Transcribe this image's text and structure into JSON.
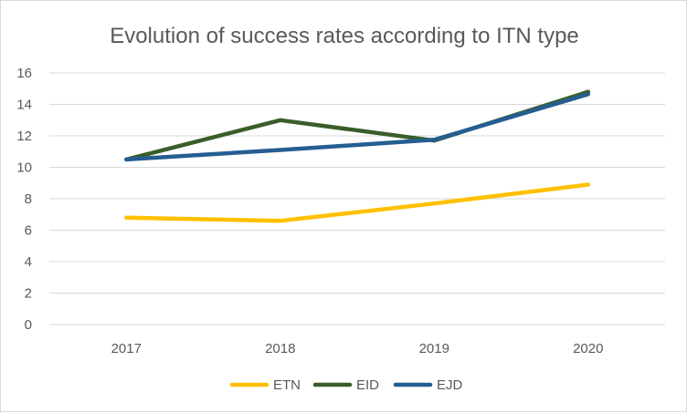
{
  "chart_data": {
    "type": "line",
    "title": "Evolution of success rates according to ITN type",
    "xlabel": "",
    "ylabel": "",
    "categories": [
      "2017",
      "2018",
      "2019",
      "2020"
    ],
    "ylim": [
      0,
      16
    ],
    "yticks": [
      0,
      2,
      4,
      6,
      8,
      10,
      12,
      14,
      16
    ],
    "grid": true,
    "legend_position": "bottom",
    "series": [
      {
        "name": "ETN",
        "color": "#ffc000",
        "values": [
          6.8,
          6.6,
          7.7,
          8.9
        ]
      },
      {
        "name": "EID",
        "color": "#3a5e2a",
        "values": [
          10.5,
          13.0,
          11.7,
          14.8
        ]
      },
      {
        "name": "EJD",
        "color": "#255e91",
        "values": [
          10.5,
          11.1,
          11.75,
          14.65
        ]
      }
    ]
  }
}
